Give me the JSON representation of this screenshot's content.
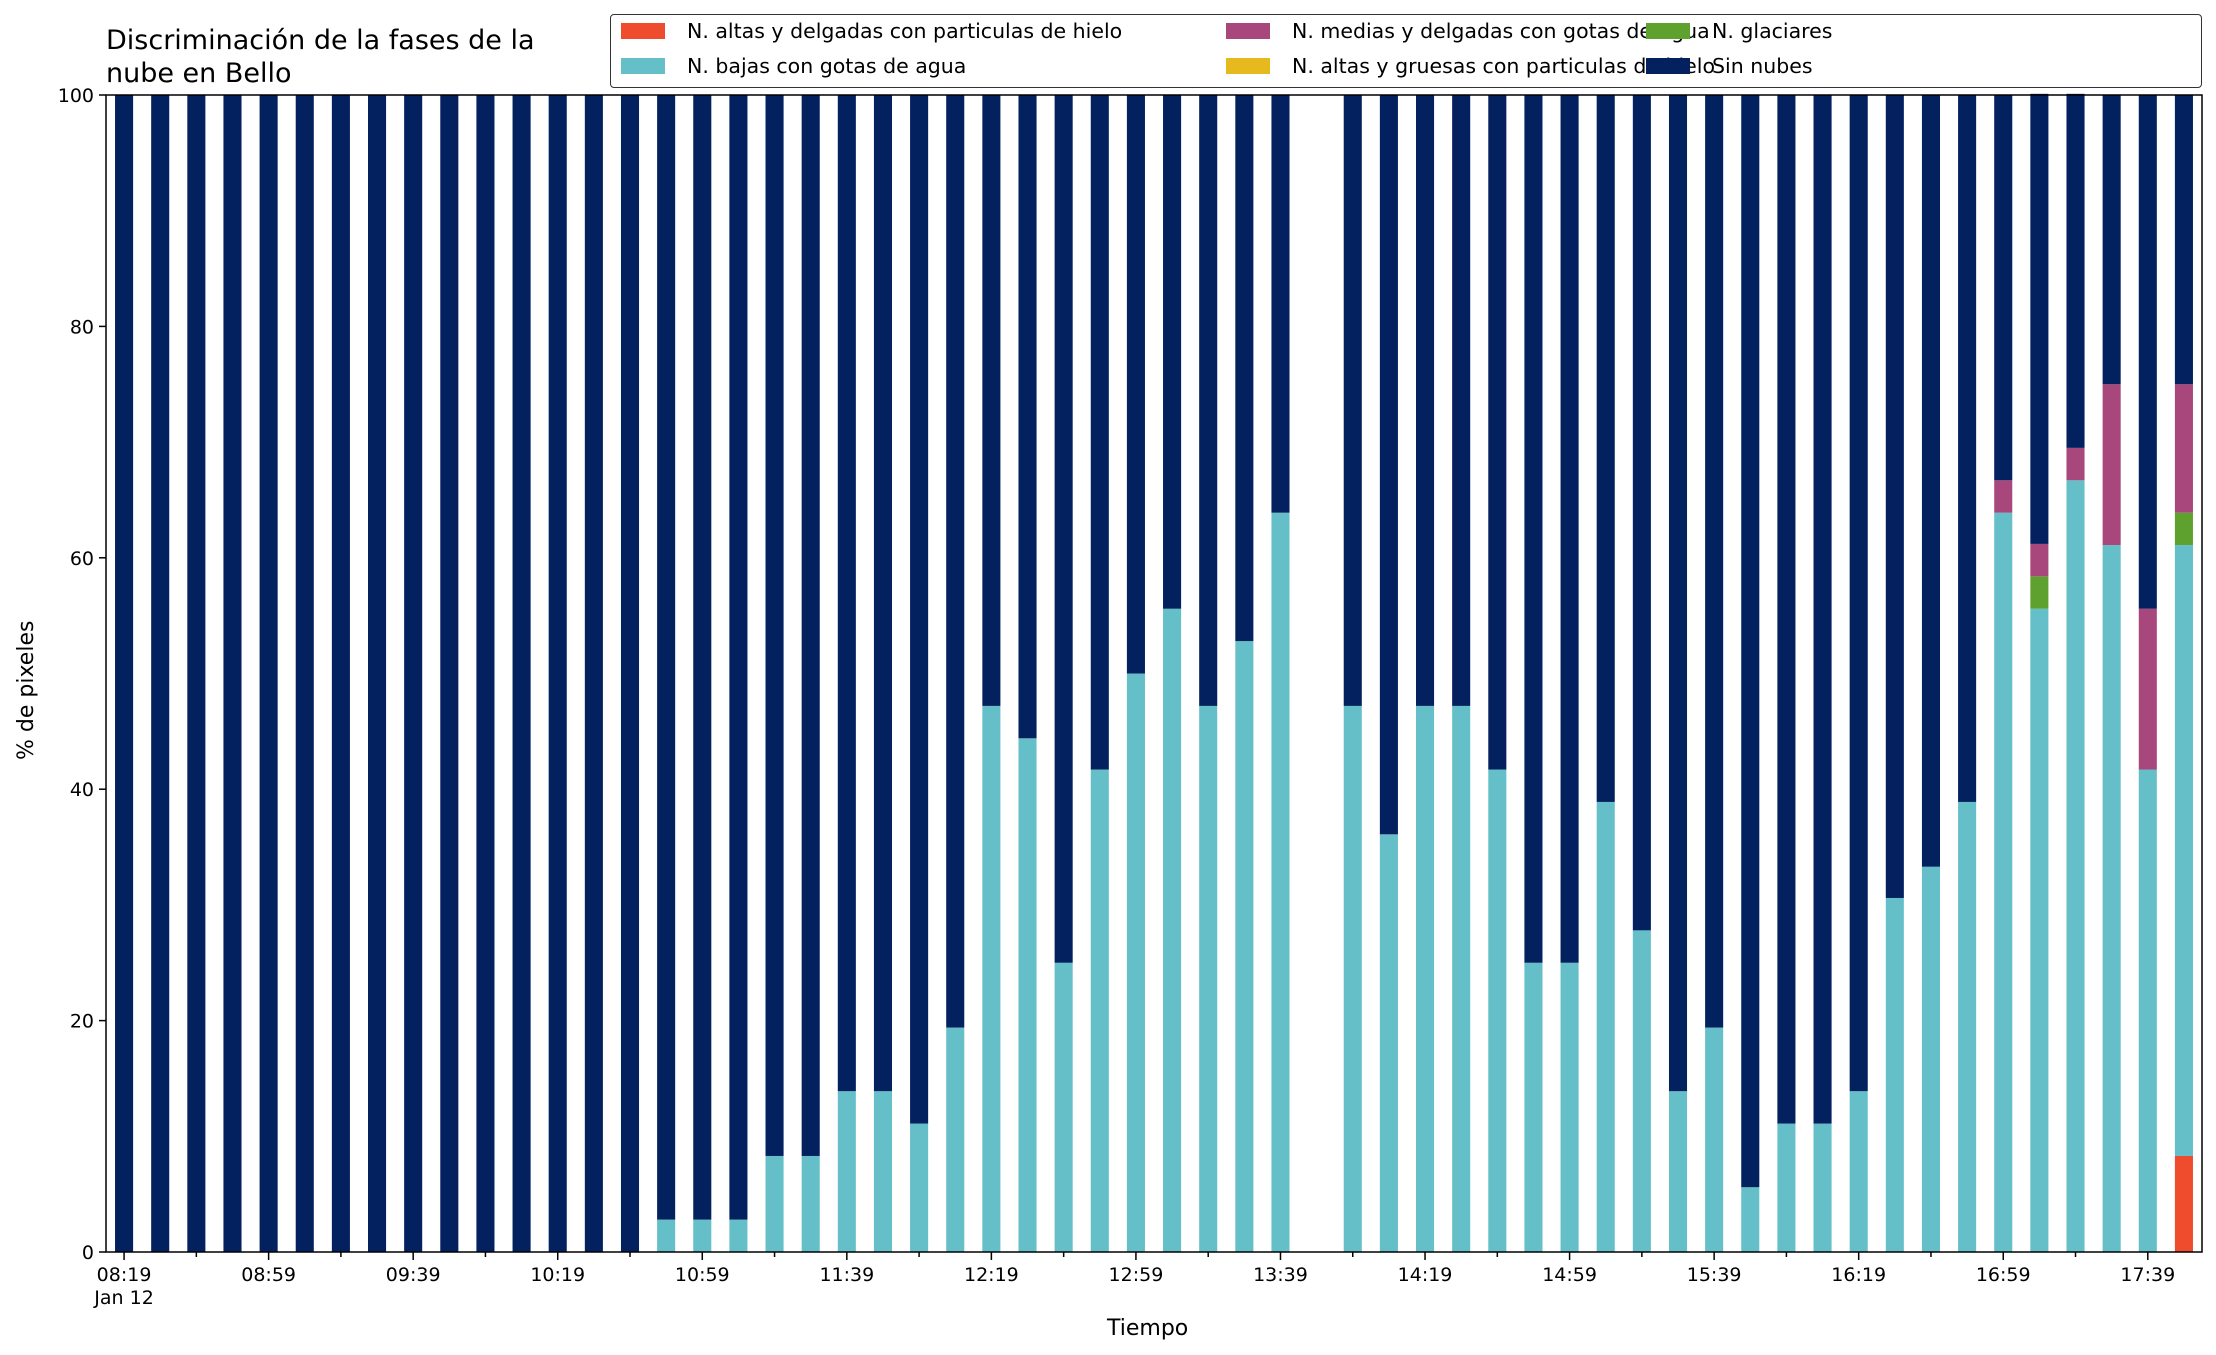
{
  "chart_data": {
    "type": "bar",
    "stacked": true,
    "title": "Discriminación de la fases de la nube en Bello",
    "title_lines": [
      "Discriminación de la fases de la",
      "nube en Bello"
    ],
    "xlabel": "Tiempo",
    "ylabel": "% de pixeles",
    "ylim": [
      0,
      100
    ],
    "yticks": [
      "0",
      "20",
      "40",
      "60",
      "80",
      "100"
    ],
    "xtick_labels": [
      "08:19",
      "08:59",
      "09:39",
      "10:19",
      "10:59",
      "11:39",
      "12:19",
      "12:59",
      "13:39",
      "14:19",
      "14:59",
      "15:39",
      "16:19",
      "16:59",
      "17:39"
    ],
    "xtick_sublabel": "Jan 12",
    "grid": false,
    "legend_position": "top-right",
    "categories": [
      "08:19",
      "08:29",
      "08:39",
      "08:49",
      "08:59",
      "09:09",
      "09:19",
      "09:29",
      "09:39",
      "09:49",
      "09:59",
      "10:09",
      "10:19",
      "10:29",
      "10:39",
      "10:49",
      "10:59",
      "11:09",
      "11:19",
      "11:29",
      "11:39",
      "11:49",
      "11:59",
      "12:09",
      "12:19",
      "12:29",
      "12:39",
      "12:49",
      "12:59",
      "13:09",
      "13:19",
      "13:29",
      "13:39",
      "13:49",
      "13:59",
      "14:09",
      "14:19",
      "14:29",
      "14:39",
      "14:49",
      "14:59",
      "15:09",
      "15:19",
      "15:29",
      "15:39",
      "15:49",
      "15:59",
      "16:09",
      "16:19",
      "16:29",
      "16:39",
      "16:49",
      "16:59",
      "17:09",
      "17:19",
      "17:29",
      "17:39",
      "17:49"
    ],
    "series": [
      {
        "name": "N. altas y delgadas con particulas de hielo",
        "color": "#ee4c2c",
        "values": [
          0,
          0,
          0,
          0,
          0,
          0,
          0,
          0,
          0,
          0,
          0,
          0,
          0,
          0,
          0,
          0,
          0,
          0,
          0,
          0,
          0,
          0,
          0,
          0,
          0,
          0,
          0,
          0,
          0,
          0,
          0,
          0,
          0,
          null,
          0,
          0,
          0,
          0,
          0,
          0,
          0,
          0,
          0,
          0,
          0,
          0,
          0,
          0,
          0,
          0,
          0,
          0,
          0,
          0,
          0,
          0,
          0,
          8.3
        ]
      },
      {
        "name": "N. altas y gruesas con particulas de hielo",
        "color": "#e6b91e",
        "values": [
          0,
          0,
          0,
          0,
          0,
          0,
          0,
          0,
          0,
          0,
          0,
          0,
          0,
          0,
          0,
          0,
          0,
          0,
          0,
          0,
          0,
          0,
          0,
          0,
          0,
          0,
          0,
          0,
          0,
          0,
          0,
          0,
          0,
          null,
          0,
          0,
          0,
          0,
          0,
          0,
          0,
          0,
          0,
          0,
          0,
          0,
          0,
          0,
          0,
          0,
          0,
          0,
          0,
          0,
          0,
          0,
          0,
          0
        ]
      },
      {
        "name": "N. bajas con gotas de agua",
        "color": "#65bfc9",
        "values": [
          0,
          0,
          0,
          0,
          0,
          0,
          0,
          0,
          0,
          0,
          0,
          0,
          0,
          0,
          0,
          2.8,
          2.8,
          2.8,
          8.3,
          8.3,
          13.9,
          13.9,
          11.1,
          19.4,
          47.2,
          44.4,
          25.0,
          41.7,
          50.0,
          55.6,
          47.2,
          52.8,
          63.9,
          null,
          47.2,
          36.1,
          47.2,
          47.2,
          41.7,
          25.0,
          25.0,
          38.9,
          27.8,
          13.9,
          19.4,
          5.6,
          11.1,
          11.1,
          13.9,
          30.6,
          33.3,
          38.9,
          63.9,
          55.6,
          66.7,
          61.1,
          41.7,
          52.8
        ]
      },
      {
        "name": "N. glaciares",
        "color": "#5fa12f",
        "values": [
          0,
          0,
          0,
          0,
          0,
          0,
          0,
          0,
          0,
          0,
          0,
          0,
          0,
          0,
          0,
          0,
          0,
          0,
          0,
          0,
          0,
          0,
          0,
          0,
          0,
          0,
          0,
          0,
          0,
          0,
          0,
          0,
          0,
          null,
          0,
          0,
          0,
          0,
          0,
          0,
          0,
          0,
          0,
          0,
          0,
          0,
          0,
          0,
          0,
          0,
          0,
          0,
          0,
          2.8,
          0,
          0,
          0,
          2.8
        ]
      },
      {
        "name": "N. medias y delgadas con gotas de agua",
        "color": "#a8477b",
        "values": [
          0,
          0,
          0,
          0,
          0,
          0,
          0,
          0,
          0,
          0,
          0,
          0,
          0,
          0,
          0,
          0,
          0,
          0,
          0,
          0,
          0,
          0,
          0,
          0,
          0,
          0,
          0,
          0,
          0,
          0,
          0,
          0,
          0,
          null,
          0,
          0,
          0,
          0,
          0,
          0,
          0,
          0,
          0,
          0,
          0,
          0,
          0,
          0,
          0,
          0,
          0,
          0,
          2.8,
          2.8,
          2.8,
          13.9,
          13.9,
          11.1
        ]
      },
      {
        "name": "Sin nubes",
        "color": "#03205f",
        "values": [
          100,
          100,
          100,
          100,
          100,
          100,
          100,
          100,
          100,
          100,
          100,
          100,
          100,
          100,
          100,
          97.2,
          97.2,
          97.2,
          91.7,
          91.7,
          86.1,
          86.1,
          88.9,
          80.6,
          52.8,
          55.6,
          75.0,
          58.3,
          50.0,
          44.4,
          52.8,
          47.2,
          36.1,
          null,
          52.8,
          63.9,
          52.8,
          52.8,
          58.3,
          75.0,
          75.0,
          61.1,
          72.2,
          86.1,
          80.6,
          94.4,
          88.9,
          88.9,
          86.1,
          69.4,
          66.7,
          61.1,
          33.3,
          38.9,
          30.6,
          25.0,
          44.4,
          25.0
        ]
      }
    ],
    "legend_order": [
      0,
      2,
      4,
      1,
      3,
      5
    ]
  }
}
